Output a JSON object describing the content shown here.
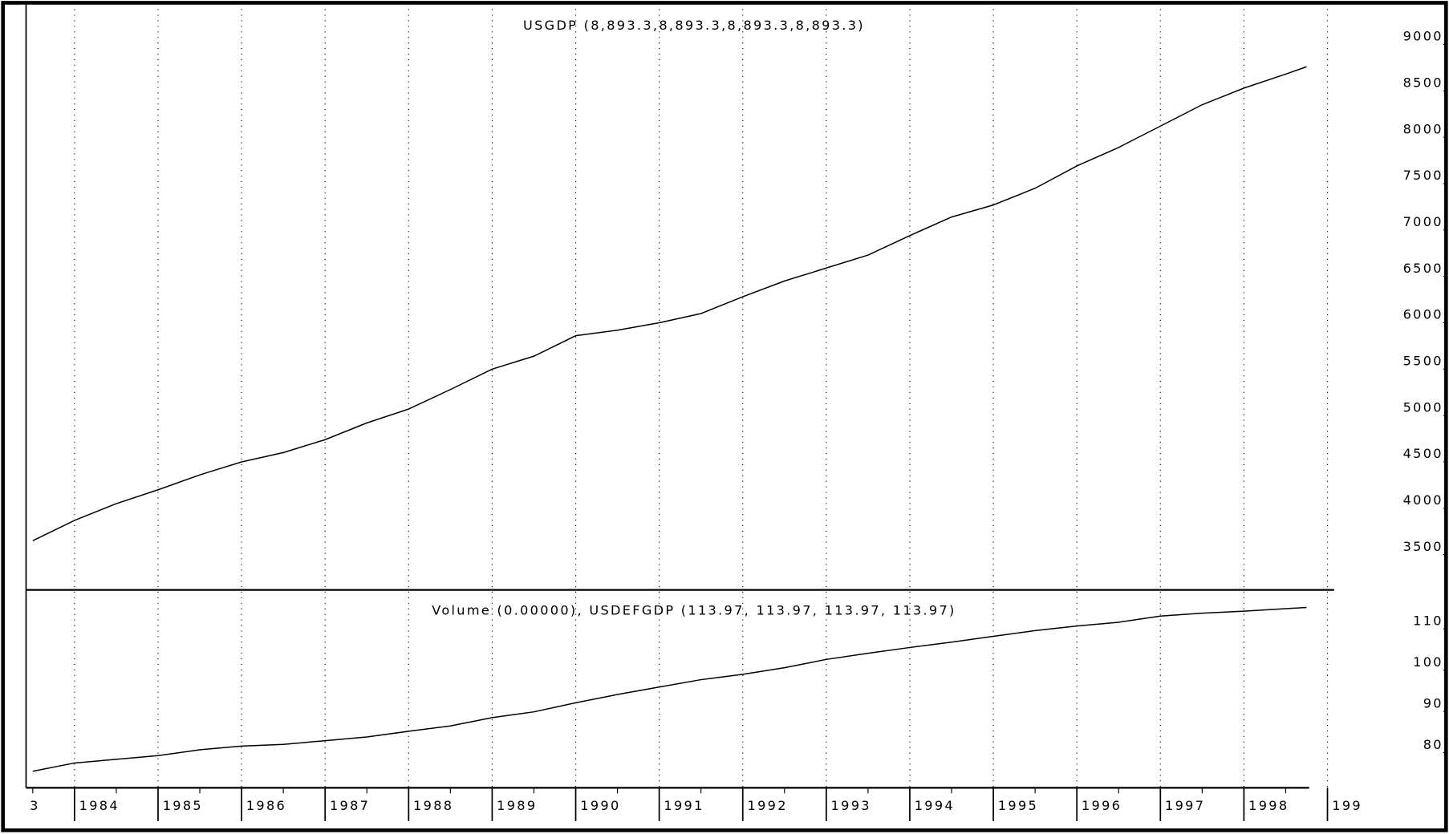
{
  "chart_data": [
    {
      "type": "line",
      "title": "USGDP (8,893.3,8,893.3,8,893.3,8,893.3)",
      "color": "#000000",
      "x": [
        1983.5,
        1984,
        1984.5,
        1985,
        1985.5,
        1986,
        1986.5,
        1987,
        1987.5,
        1988,
        1988.5,
        1989,
        1989.5,
        1990,
        1990.5,
        1991,
        1991.5,
        1992,
        1992.5,
        1993,
        1993.5,
        1994,
        1994.5,
        1995,
        1995.5,
        1996,
        1996.5,
        1997,
        1997.5,
        1998,
        1998.5,
        1998.75
      ],
      "values": [
        3570,
        3790,
        3970,
        4120,
        4280,
        4420,
        4520,
        4660,
        4840,
        4990,
        5200,
        5420,
        5560,
        5780,
        5840,
        5920,
        6020,
        6200,
        6370,
        6510,
        6650,
        6860,
        7060,
        7190,
        7370,
        7610,
        7810,
        8040,
        8270,
        8450,
        8600,
        8680
      ],
      "xlim": [
        1983.42,
        1999.39
      ],
      "ylim": [
        3050,
        9320
      ],
      "yticks": [
        3500,
        4000,
        4500,
        5000,
        5500,
        6000,
        6500,
        7000,
        7500,
        8000,
        8500,
        9000
      ]
    },
    {
      "type": "line",
      "title": "Volume (0.00000), USDEFGDP (113.97, 113.97, 113.97, 113.97)",
      "color": "#000000",
      "x": [
        1983.5,
        1984,
        1984.5,
        1985,
        1985.5,
        1986,
        1986.5,
        1987,
        1987.5,
        1988,
        1988.5,
        1989,
        1989.5,
        1990,
        1990.5,
        1991,
        1991.5,
        1992,
        1992.5,
        1993,
        1993.5,
        1994,
        1994.5,
        1995,
        1995.5,
        1996,
        1996.5,
        1997,
        1997.5,
        1998,
        1998.5,
        1998.75
      ],
      "values": [
        73.7,
        75.7,
        76.6,
        77.5,
        78.9,
        79.8,
        80.2,
        81.1,
        82.0,
        83.4,
        84.7,
        86.7,
        88.1,
        90.3,
        92.3,
        94.1,
        95.9,
        97.2,
        98.8,
        100.8,
        102.3,
        103.7,
        105.0,
        106.4,
        107.8,
        108.9,
        109.8,
        111.3,
        112.0,
        112.5,
        113.1,
        113.4
      ],
      "xlim": [
        1983.42,
        1999.39
      ],
      "ylim": [
        69.7,
        117.2
      ],
      "yticks": [
        80,
        90,
        100,
        110
      ],
      "xticks": [
        {
          "value": 1983,
          "label": "3"
        },
        1984,
        1985,
        1986,
        1987,
        1988,
        1989,
        1990,
        1991,
        1992,
        1993,
        1994,
        1995,
        1996,
        1997,
        1998,
        {
          "value": 1999,
          "label": "199"
        }
      ],
      "grid": true
    }
  ]
}
